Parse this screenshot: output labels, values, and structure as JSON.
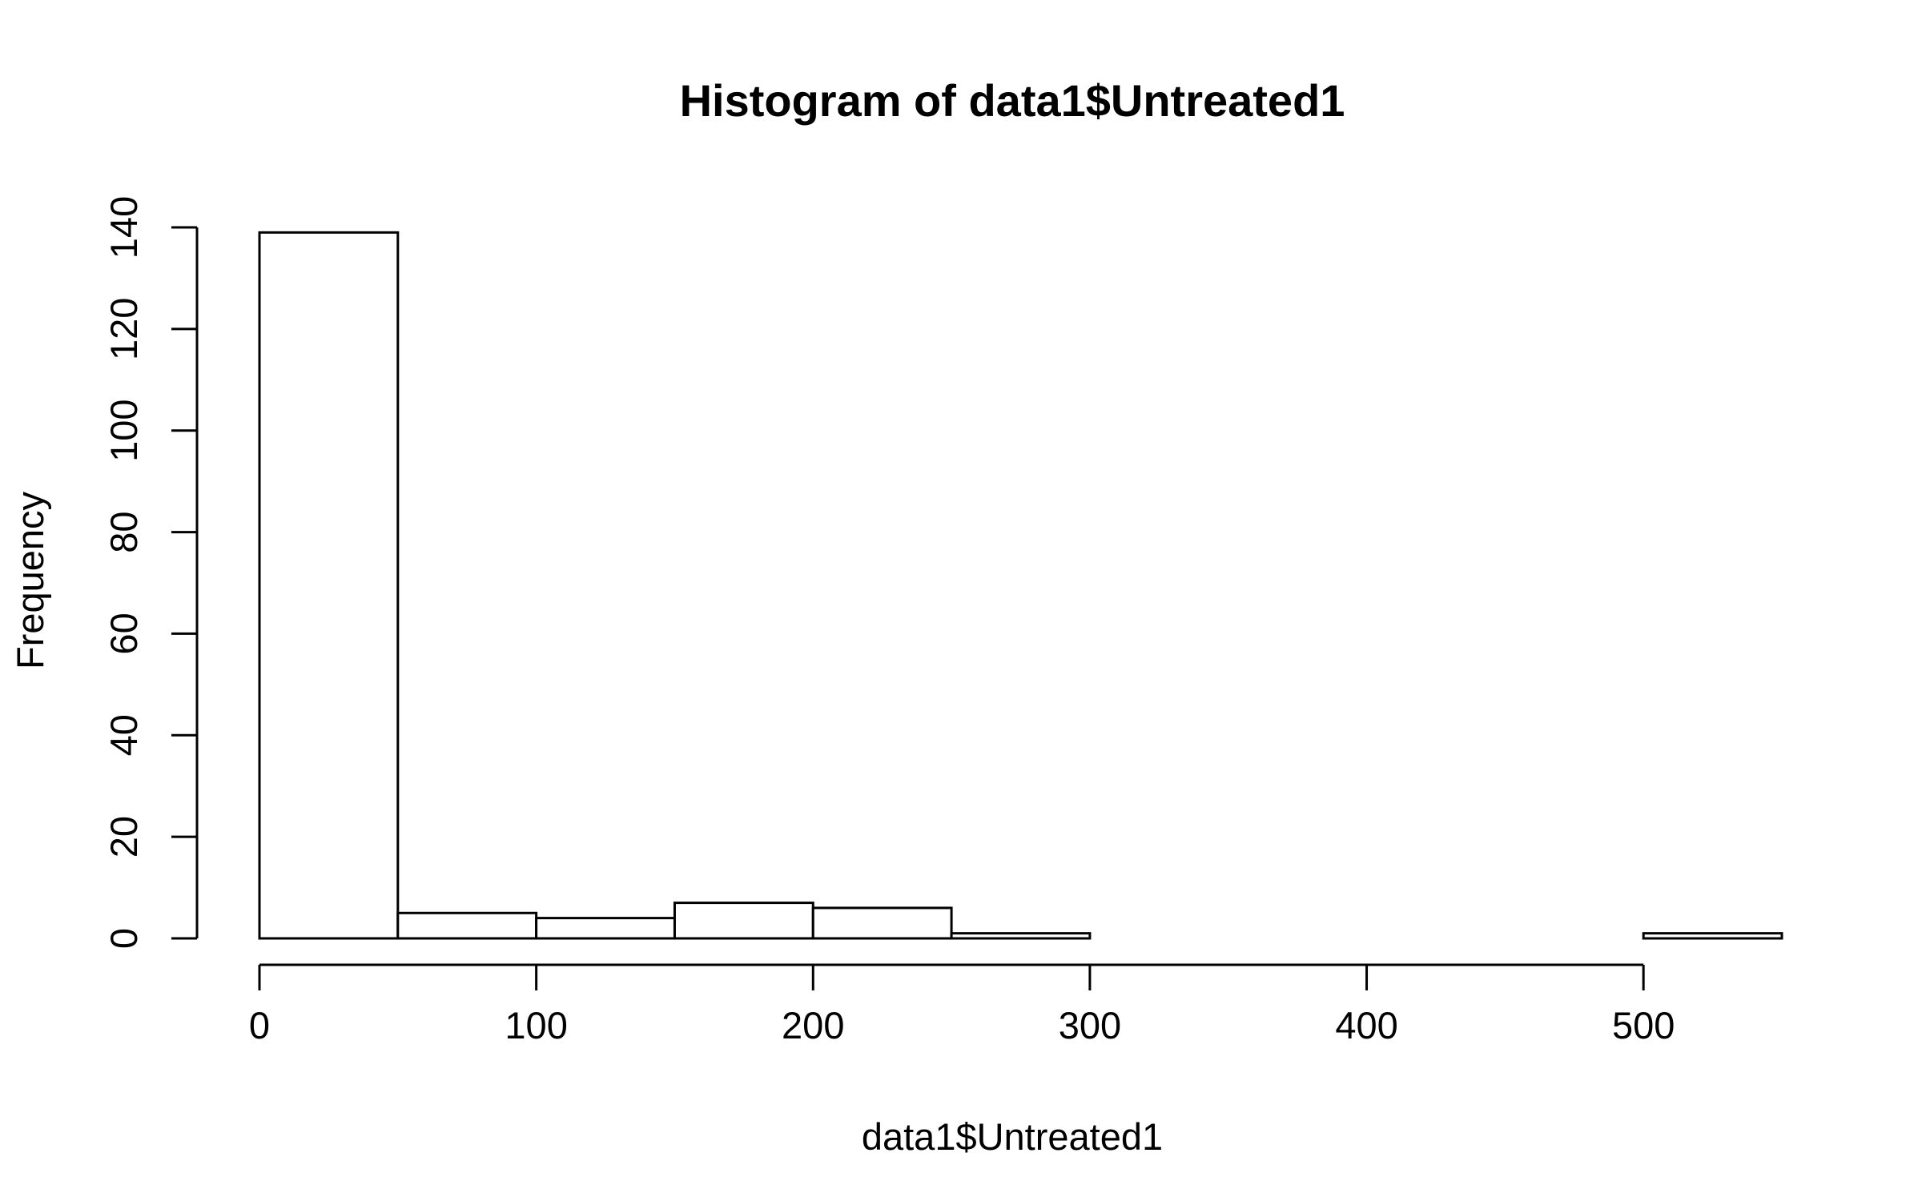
{
  "chart_data": {
    "type": "bar",
    "title": "Histogram of data1$Untreated1",
    "xlabel": "data1$Untreated1",
    "ylabel": "Frequency",
    "bin_edges": [
      0,
      50,
      100,
      150,
      200,
      250,
      300,
      350,
      400,
      450,
      500,
      550
    ],
    "values": [
      139,
      5,
      4,
      7,
      6,
      1,
      0,
      0,
      0,
      0,
      1
    ],
    "xlim": [
      0,
      550
    ],
    "ylim": [
      0,
      140
    ],
    "x_ticks": [
      0,
      100,
      200,
      300,
      400,
      500
    ],
    "x_tick_labels": [
      "0",
      "100",
      "200",
      "300",
      "400",
      "500"
    ],
    "y_ticks": [
      0,
      20,
      40,
      60,
      80,
      100,
      120,
      140
    ],
    "y_tick_labels": [
      "0",
      "20",
      "40",
      "60",
      "80",
      "100",
      "120",
      "140"
    ],
    "grid": false,
    "bar_fill": "#ffffff",
    "bar_stroke": "#000000"
  }
}
